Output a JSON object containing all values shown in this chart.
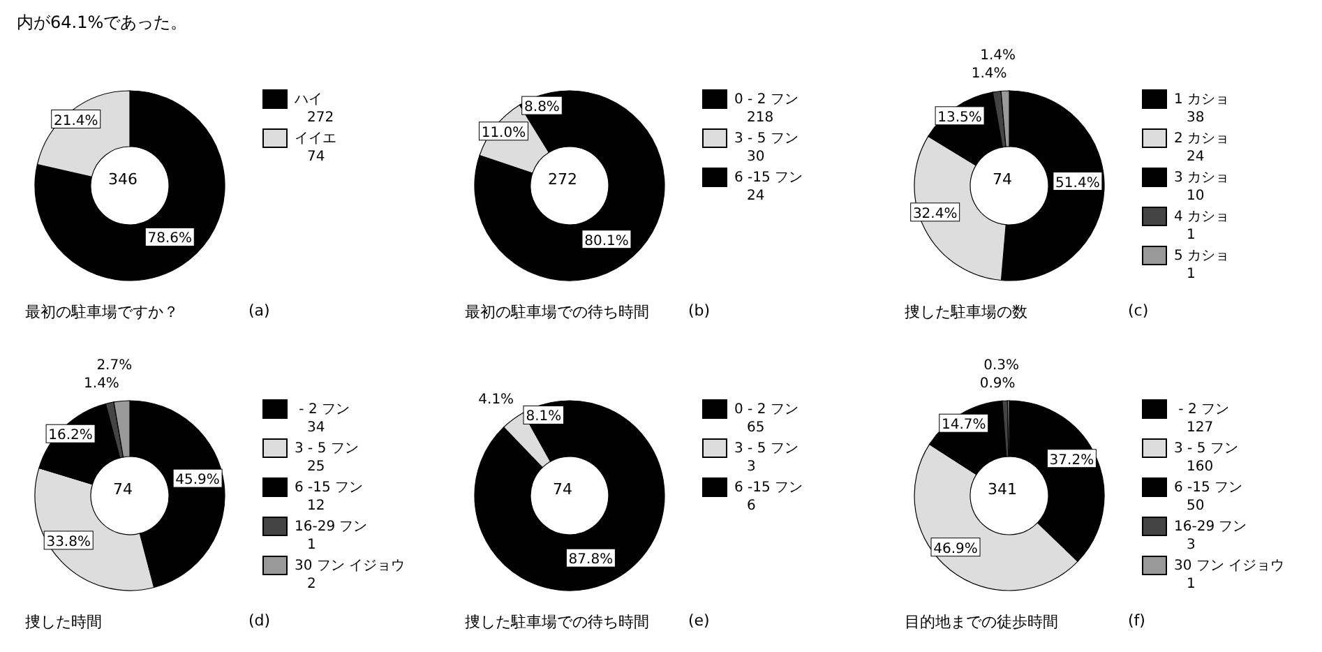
{
  "chart_data": [
    {
      "type": "donut",
      "title": "最初の駐車場ですか？",
      "categories": [
        "ハイ",
        "イイエ"
      ],
      "values": [
        78.6,
        21.4
      ],
      "colors": [
        "#000000",
        "#dddddd"
      ],
      "value_labels": [
        "78.6%",
        "21.4%"
      ],
      "legend": "right",
      "annotations": [
        "346",
        "(a)",
        "272",
        "74",
        "内が64.1%であった。"
      ]
    },
    {
      "type": "donut",
      "title": "最初の駐車場での待ち時間",
      "categories": [
        "0 - 2 フン",
        "3 - 5 フン",
        "6 -15 フン"
      ],
      "values": [
        80.1,
        11.0,
        8.8
      ],
      "colors": [
        "#000000",
        "#dddddd",
        "#000000"
      ],
      "value_labels": [
        "80.1%",
        "11.0%",
        "8.8%"
      ],
      "legend": "right",
      "annotations": [
        "272",
        "(b)",
        "218",
        "30",
        "24"
      ]
    },
    {
      "type": "donut",
      "title": "捜した駐車場の数",
      "categories": [
        "1 カショ",
        "2 カショ",
        "3 カショ",
        "4 カショ",
        "5 カショ"
      ],
      "values": [
        51.4,
        32.4,
        13.5,
        1.4,
        1.4
      ],
      "colors": [
        "#000000",
        "#dddddd",
        "#000000",
        "#444444",
        "#999999"
      ],
      "value_labels": [
        "51.4%",
        "32.4%",
        "13.5%",
        "1.4%",
        "1.4%"
      ],
      "legend": "right",
      "annotations": [
        "74",
        "(c)",
        "38",
        "24",
        "10",
        "1",
        "1"
      ]
    },
    {
      "type": "donut",
      "title": "捜した時間",
      "categories": [
        " - 2 フン",
        "3 - 5 フン",
        "6 -15 フン",
        "16-29 フン",
        "30 フン イジョウ"
      ],
      "values": [
        45.9,
        33.8,
        16.2,
        1.4,
        2.7
      ],
      "colors": [
        "#000000",
        "#dddddd",
        "#000000",
        "#444444",
        "#999999"
      ],
      "value_labels": [
        "45.9%",
        "33.8%",
        "16.2%",
        "1.4%",
        "2.7%"
      ],
      "legend": "right",
      "annotations": [
        "74",
        "(d)",
        "34",
        "25",
        "12",
        "1",
        "2"
      ]
    },
    {
      "type": "donut",
      "title": "捜した駐車場での待ち時間",
      "categories": [
        "0 - 2 フン",
        "3 - 5 フン",
        "6 -15 フン"
      ],
      "values": [
        87.8,
        4.1,
        8.1
      ],
      "colors": [
        "#000000",
        "#dddddd",
        "#000000"
      ],
      "value_labels": [
        "87.8%",
        "4.1%",
        "8.1%"
      ],
      "legend": "right",
      "annotations": [
        "74",
        "(e)",
        "65",
        "3",
        "6"
      ]
    },
    {
      "type": "donut",
      "title": "目的地までの徒歩時間",
      "categories": [
        " - 2 フン",
        "3 - 5 フン",
        "6 -15 フン",
        "16-29 フン",
        "30 フン イジョウ"
      ],
      "values": [
        37.2,
        46.9,
        14.7,
        0.9,
        0.3
      ],
      "colors": [
        "#000000",
        "#dddddd",
        "#000000",
        "#444444",
        "#999999"
      ],
      "value_labels": [
        "37.2%",
        "46.9%",
        "14.7%",
        "0.9%",
        "0.3%"
      ],
      "legend": "right",
      "annotations": [
        "341",
        "(f)",
        "127",
        "160",
        "50",
        "3",
        "1"
      ]
    }
  ]
}
